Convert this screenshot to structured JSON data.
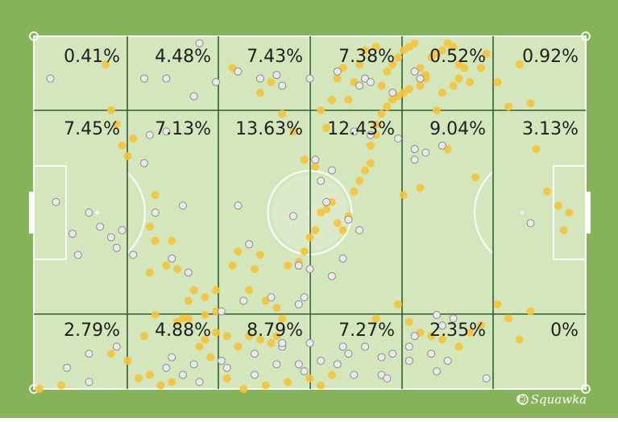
{
  "watermark": "© Squawka",
  "colors": {
    "outer_grass": "#86b35a",
    "pitch": "#d3e6bc",
    "pitch_lines": "#ffffff",
    "zone_lines": "#2f5f2f",
    "dot_grey": "#e9e9e9",
    "dot_grey_stroke": "#8c8c8c",
    "dot_yellow": "#f5c33b"
  },
  "chart_data": {
    "type": "heatmap",
    "columns": 6,
    "rows": 3,
    "cells": [
      [
        "0.41%",
        "4.48%",
        "7.43%",
        "7.38%",
        "0.52%",
        "0.92%"
      ],
      [
        "7.45%",
        "7.13%",
        "13.63%",
        "12.43%",
        "9.04%",
        "3.13%"
      ],
      [
        "2.79%",
        "4.88%",
        "8.79%",
        "7.27%",
        "2.35%",
        "0%"
      ]
    ],
    "values": [
      [
        0.41,
        4.48,
        7.43,
        7.38,
        0.52,
        0.92
      ],
      [
        7.45,
        7.13,
        13.63,
        12.43,
        9.04,
        3.13
      ],
      [
        2.79,
        4.88,
        8.79,
        7.27,
        2.35,
        0
      ]
    ],
    "xlim": [
      0,
      100
    ],
    "ylim": [
      0,
      100
    ],
    "touches": {
      "grey": [
        [
          3,
          12
        ],
        [
          20,
          12
        ],
        [
          24,
          12
        ],
        [
          29,
          17
        ],
        [
          30,
          2
        ],
        [
          33,
          13
        ],
        [
          37,
          10
        ],
        [
          41,
          12
        ],
        [
          44,
          11
        ],
        [
          45,
          14
        ],
        [
          50,
          12
        ],
        [
          55,
          10
        ],
        [
          59,
          14
        ],
        [
          60,
          12
        ],
        [
          61,
          13
        ],
        [
          65,
          16
        ],
        [
          69,
          10
        ],
        [
          70,
          12
        ],
        [
          58,
          27
        ],
        [
          61,
          28
        ],
        [
          66,
          29
        ],
        [
          69,
          32
        ],
        [
          71,
          33
        ],
        [
          69,
          35
        ],
        [
          74,
          31
        ],
        [
          4,
          47
        ],
        [
          7,
          56
        ],
        [
          8,
          62
        ],
        [
          10,
          50
        ],
        [
          12,
          54
        ],
        [
          14,
          57
        ],
        [
          15,
          60
        ],
        [
          16,
          55
        ],
        [
          18,
          62
        ],
        [
          21,
          28
        ],
        [
          24,
          27
        ],
        [
          20,
          36
        ],
        [
          22,
          50
        ],
        [
          27,
          48
        ],
        [
          25,
          63
        ],
        [
          28,
          67
        ],
        [
          37,
          48
        ],
        [
          39,
          59
        ],
        [
          47,
          51
        ],
        [
          48,
          65
        ],
        [
          50,
          66
        ],
        [
          51,
          35
        ],
        [
          52,
          41
        ],
        [
          53,
          47
        ],
        [
          54,
          38
        ],
        [
          54,
          68
        ],
        [
          56,
          63
        ],
        [
          57,
          52
        ],
        [
          59,
          55
        ],
        [
          34,
          78
        ],
        [
          38,
          75
        ],
        [
          43,
          74
        ],
        [
          48,
          76
        ],
        [
          49,
          74
        ],
        [
          40,
          90
        ],
        [
          45,
          88
        ],
        [
          48,
          93
        ],
        [
          49,
          95
        ],
        [
          50,
          87
        ],
        [
          52,
          92
        ],
        [
          55,
          93
        ],
        [
          57,
          90
        ],
        [
          58,
          96
        ],
        [
          56,
          88
        ],
        [
          60,
          88
        ],
        [
          63,
          91
        ],
        [
          65,
          90
        ],
        [
          68,
          88
        ],
        [
          68,
          92
        ],
        [
          69,
          85
        ],
        [
          73,
          79
        ],
        [
          74,
          82
        ],
        [
          72,
          90
        ],
        [
          73,
          95
        ],
        [
          76,
          80
        ],
        [
          63,
          96
        ],
        [
          64,
          97
        ],
        [
          6,
          94
        ],
        [
          10,
          90
        ],
        [
          10,
          98
        ],
        [
          15,
          88
        ],
        [
          24,
          94
        ],
        [
          25,
          91
        ],
        [
          27,
          96
        ],
        [
          29,
          93
        ],
        [
          30,
          98
        ],
        [
          34,
          92
        ],
        [
          35,
          94
        ],
        [
          40,
          96
        ],
        [
          44,
          93
        ],
        [
          45,
          87
        ],
        [
          90,
          53
        ],
        [
          75,
          92
        ],
        [
          82,
          97
        ]
      ],
      "yellow": [
        [
          13,
          8
        ],
        [
          14,
          21
        ],
        [
          15,
          25
        ],
        [
          16,
          31
        ],
        [
          17,
          34
        ],
        [
          18,
          29
        ],
        [
          22,
          45
        ],
        [
          21,
          54
        ],
        [
          22,
          58
        ],
        [
          21,
          67
        ],
        [
          24,
          65
        ],
        [
          25,
          58
        ],
        [
          26,
          66
        ],
        [
          27,
          80
        ],
        [
          28,
          75
        ],
        [
          29,
          72
        ],
        [
          31,
          86
        ],
        [
          31,
          74
        ],
        [
          33,
          72
        ],
        [
          33,
          78
        ],
        [
          36,
          65
        ],
        [
          37,
          61
        ],
        [
          39,
          72
        ],
        [
          40,
          66
        ],
        [
          41,
          62
        ],
        [
          42,
          75
        ],
        [
          44,
          77
        ],
        [
          45,
          80
        ],
        [
          46,
          65
        ],
        [
          48,
          64
        ],
        [
          49,
          61
        ],
        [
          50,
          57
        ],
        [
          51,
          55
        ],
        [
          52,
          50
        ],
        [
          53,
          49
        ],
        [
          54,
          47
        ],
        [
          55,
          53
        ],
        [
          56,
          55
        ],
        [
          57,
          51
        ],
        [
          58,
          44
        ],
        [
          59,
          41
        ],
        [
          60,
          38
        ],
        [
          61,
          36
        ],
        [
          61,
          31
        ],
        [
          62,
          28
        ],
        [
          62,
          25
        ],
        [
          63,
          22
        ],
        [
          64,
          20
        ],
        [
          65,
          18
        ],
        [
          66,
          17
        ],
        [
          67,
          16
        ],
        [
          68,
          15
        ],
        [
          70,
          14
        ],
        [
          71,
          12
        ],
        [
          73,
          21
        ],
        [
          74,
          16
        ],
        [
          75,
          32
        ],
        [
          76,
          14
        ],
        [
          77,
          12
        ],
        [
          79,
          13
        ],
        [
          81,
          9
        ],
        [
          84,
          13
        ],
        [
          86,
          20
        ],
        [
          88,
          8
        ],
        [
          90,
          19
        ],
        [
          91,
          32
        ],
        [
          93,
          44
        ],
        [
          95,
          48
        ],
        [
          96,
          55
        ],
        [
          97,
          50
        ],
        [
          80,
          40
        ],
        [
          70,
          43
        ],
        [
          67,
          45
        ],
        [
          36,
          9
        ],
        [
          41,
          16
        ],
        [
          43,
          13
        ],
        [
          45,
          22
        ],
        [
          47,
          27
        ],
        [
          49,
          35
        ],
        [
          51,
          37
        ],
        [
          52,
          21
        ],
        [
          53,
          26
        ],
        [
          54,
          18
        ],
        [
          55,
          12
        ],
        [
          56,
          9
        ],
        [
          57,
          18
        ],
        [
          58,
          13
        ],
        [
          59,
          8
        ],
        [
          60,
          4
        ],
        [
          62,
          3
        ],
        [
          63,
          14
        ],
        [
          64,
          10
        ],
        [
          65,
          8
        ],
        [
          66,
          6
        ],
        [
          67,
          4
        ],
        [
          68,
          3
        ],
        [
          69,
          2
        ],
        [
          70,
          9
        ],
        [
          71,
          11
        ],
        [
          72,
          6
        ],
        [
          73,
          5
        ],
        [
          74,
          4
        ],
        [
          75,
          2
        ],
        [
          76,
          3
        ],
        [
          77,
          8
        ],
        [
          78,
          9
        ],
        [
          82,
          5
        ],
        [
          26,
          81
        ],
        [
          28,
          80
        ],
        [
          31,
          79
        ],
        [
          33,
          84
        ],
        [
          35,
          85
        ],
        [
          37,
          88
        ],
        [
          39,
          85
        ],
        [
          41,
          86
        ],
        [
          43,
          87
        ],
        [
          44,
          85
        ],
        [
          30,
          88
        ],
        [
          32,
          91
        ],
        [
          35,
          97
        ],
        [
          38,
          100
        ],
        [
          42,
          99
        ],
        [
          46,
          98
        ],
        [
          50,
          97
        ],
        [
          52,
          99
        ],
        [
          54,
          96
        ],
        [
          14,
          90
        ],
        [
          17,
          92
        ],
        [
          19,
          97
        ],
        [
          21,
          96
        ],
        [
          23,
          99
        ],
        [
          25,
          98
        ],
        [
          20,
          85
        ],
        [
          22,
          79
        ],
        [
          1,
          100
        ],
        [
          5,
          99
        ],
        [
          62,
          80
        ],
        [
          66,
          76
        ],
        [
          68,
          81
        ],
        [
          70,
          84
        ],
        [
          72,
          85
        ],
        [
          74,
          86
        ],
        [
          77,
          88
        ],
        [
          79,
          84
        ],
        [
          81,
          82
        ],
        [
          84,
          76
        ],
        [
          86,
          80
        ],
        [
          88,
          86
        ],
        [
          90,
          78
        ]
      ]
    }
  }
}
